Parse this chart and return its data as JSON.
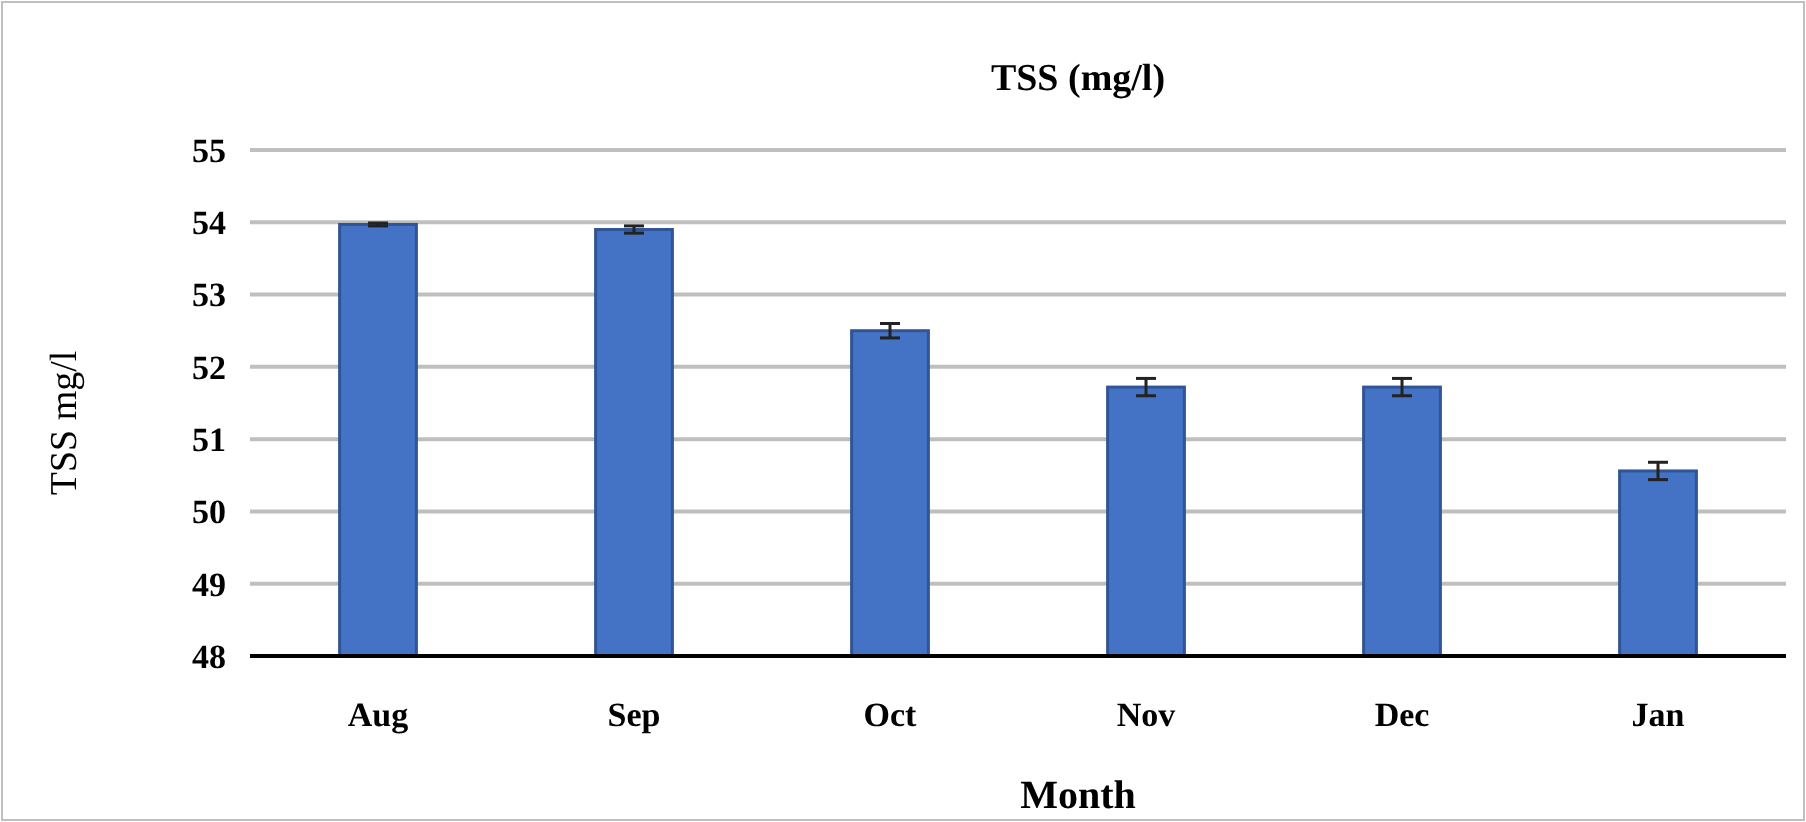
{
  "chart_data": {
    "type": "bar",
    "title": "TSS (mg/l)",
    "xlabel": "Month",
    "ylabel": "TSS mg/l",
    "categories": [
      "Aug",
      "Sep",
      "Oct",
      "Nov",
      "Dec",
      "Jan"
    ],
    "values": [
      53.97,
      53.9,
      52.5,
      51.72,
      51.72,
      50.56
    ],
    "errors": [
      0.02,
      0.05,
      0.1,
      0.12,
      0.12,
      0.12
    ],
    "color": "#4472c4",
    "ylim": [
      48,
      55
    ],
    "yticks": [
      48,
      49,
      50,
      51,
      52,
      53,
      54,
      55
    ],
    "grid": "y"
  }
}
